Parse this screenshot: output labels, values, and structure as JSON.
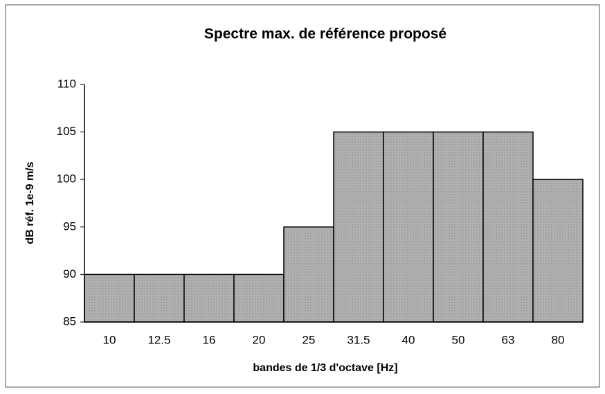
{
  "chart_data": {
    "type": "bar",
    "title": "Spectre max. de référence proposé",
    "x_label": "bandes de 1/3 d'octave [Hz]",
    "y_label": "dB réf. 1e-9 m/s",
    "categories": [
      "10",
      "12.5",
      "16",
      "20",
      "25",
      "31.5",
      "40",
      "50",
      "63",
      "80"
    ],
    "values": [
      90,
      90,
      90,
      90,
      95,
      105,
      105,
      105,
      105,
      100
    ],
    "color": "#b4b4b4",
    "ylim": [
      85,
      110
    ],
    "yticks": [
      85,
      90,
      95,
      100,
      105,
      110
    ],
    "grid": false
  }
}
